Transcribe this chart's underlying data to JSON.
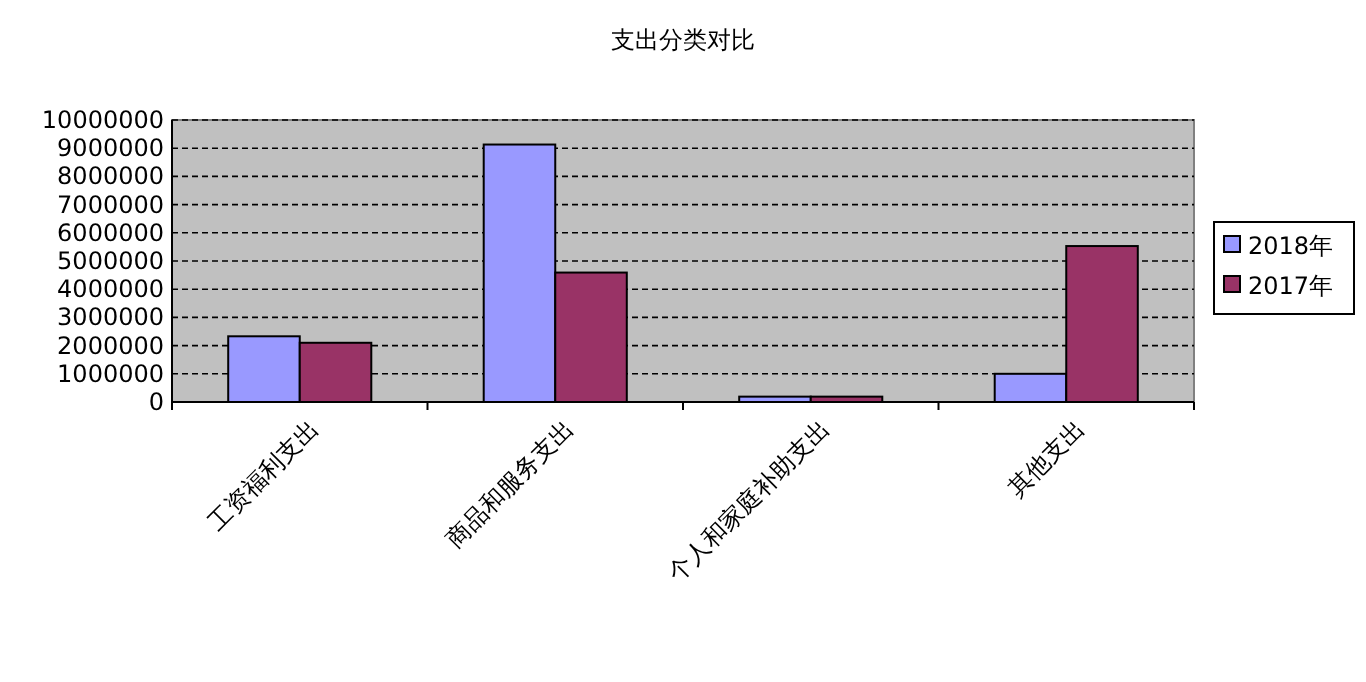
{
  "chart_data": {
    "type": "bar",
    "title": "支出分类对比",
    "categories": [
      "工资福利支出",
      "商品和服务支出",
      "个人和家庭补助支出",
      "其他支出"
    ],
    "series": [
      {
        "name": "2018年",
        "color": "#9999ff",
        "values": [
          2330000,
          9130000,
          190000,
          1000000
        ]
      },
      {
        "name": "2017年",
        "color": "#993366",
        "values": [
          2100000,
          4590000,
          190000,
          5530000
        ]
      }
    ],
    "ylim": [
      0,
      10000000
    ],
    "yticks": [
      0,
      1000000,
      2000000,
      3000000,
      4000000,
      5000000,
      6000000,
      7000000,
      8000000,
      9000000,
      10000000
    ],
    "grid": "y",
    "legend": "right"
  }
}
